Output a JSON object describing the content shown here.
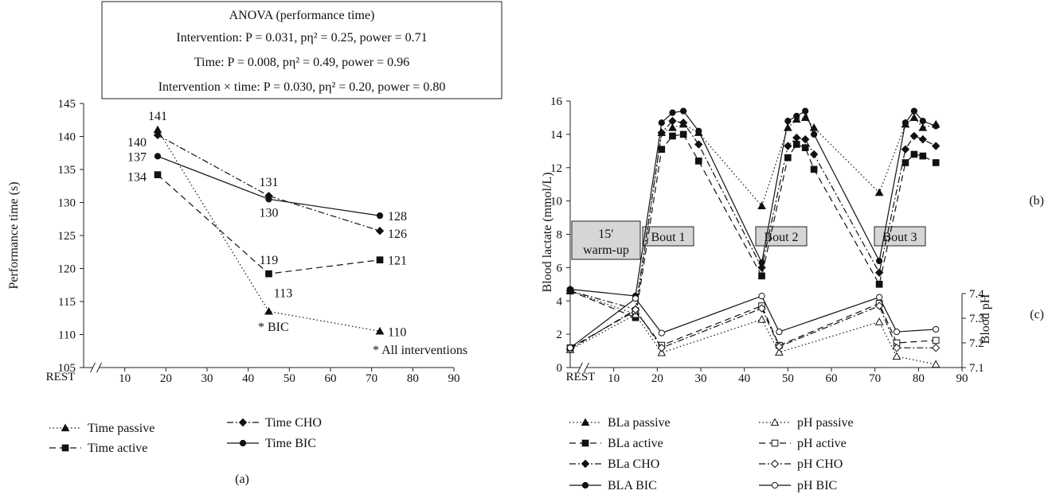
{
  "chart_data": [
    {
      "type": "line",
      "panel_label": "(a)",
      "ylabel": "Performance time (s)",
      "x_first_label": "REST",
      "x_ticks": [
        10,
        20,
        30,
        40,
        50,
        60,
        70,
        80,
        90
      ],
      "xlim": [
        0,
        90
      ],
      "y_ticks": [
        105,
        110,
        115,
        120,
        125,
        130,
        135,
        140,
        145
      ],
      "ylim": [
        105,
        145
      ],
      "grid": false,
      "anova_box": [
        "ANOVA (performance time)",
        "Intervention: P = 0.031, pη² = 0.25, power = 0.71",
        "Time: P = 0.008, pη² = 0.49, power = 0.96",
        "Intervention × time: P = 0.030, pη² = 0.20, power = 0.80"
      ],
      "annotations": [
        "* BIC",
        "* All interventions"
      ],
      "series": [
        {
          "name": "Time passive",
          "marker": "triangle",
          "dash": "dotted",
          "x": [
            18,
            45,
            72
          ],
          "y": [
            141,
            113.5,
            110.5
          ],
          "labels": [
            "141",
            "113",
            "110"
          ]
        },
        {
          "name": "Time active",
          "marker": "square",
          "dash": "dashed",
          "x": [
            18,
            45,
            72
          ],
          "y": [
            134.2,
            119.2,
            121.3
          ],
          "labels": [
            "134",
            "119",
            "121"
          ]
        },
        {
          "name": "Time CHO",
          "marker": "diamond",
          "dash": "dashdot",
          "x": [
            18,
            45,
            72
          ],
          "y": [
            140.2,
            131,
            125.7
          ],
          "labels": [
            "140",
            "131",
            "126"
          ]
        },
        {
          "name": "Time BIC",
          "marker": "circle",
          "dash": "solid",
          "x": [
            18,
            45,
            72
          ],
          "y": [
            137,
            130.5,
            128
          ],
          "labels": [
            "137",
            "130",
            "128"
          ]
        }
      ]
    },
    {
      "type": "line",
      "panel_labels": [
        "(b)",
        "(c)"
      ],
      "ylabel": "Blood lactate (mmol/L)",
      "y2label": "Blood pH",
      "x_first_label": "REST",
      "x_ticks": [
        10,
        20,
        30,
        40,
        50,
        60,
        70,
        80,
        90
      ],
      "xlim": [
        0,
        90
      ],
      "y_ticks": [
        0,
        2,
        4,
        6,
        8,
        10,
        12,
        14,
        16
      ],
      "ylim": [
        0,
        16
      ],
      "y2_ticks": [
        7.1,
        7.2,
        7.3,
        7.4
      ],
      "y2lim": [
        7.1,
        7.4
      ],
      "grid": false,
      "phase_boxes": [
        "15′ warm-up",
        "Bout 1",
        "Bout 2",
        "Bout 3"
      ],
      "series": [
        {
          "name": "BLa passive",
          "axis": "left",
          "marker": "triangle",
          "filled": true,
          "dash": "dotted",
          "x": [
            0,
            15,
            21,
            23.5,
            26,
            29.5,
            44,
            50,
            52,
            54,
            56,
            71,
            77,
            79,
            81,
            84
          ],
          "y": [
            4.6,
            3.2,
            14.1,
            14.4,
            14.6,
            14.1,
            9.7,
            14.4,
            14.9,
            15,
            14.4,
            10.5,
            14.6,
            15,
            14.4,
            14.6
          ]
        },
        {
          "name": "BLa active",
          "axis": "left",
          "marker": "square",
          "filled": true,
          "dash": "dashed",
          "x": [
            0,
            15,
            21,
            23.5,
            26,
            29.5,
            44,
            50,
            52,
            54,
            56,
            71,
            77,
            79,
            81,
            84
          ],
          "y": [
            4.6,
            3.0,
            13.1,
            13.9,
            14.0,
            12.4,
            5.5,
            12.6,
            13.4,
            13.2,
            11.9,
            5.0,
            12.3,
            12.8,
            12.7,
            12.3
          ]
        },
        {
          "name": "BLa CHO",
          "axis": "left",
          "marker": "diamond",
          "filled": true,
          "dash": "dashdot",
          "x": [
            0,
            15,
            21,
            23.5,
            26,
            29.5,
            44,
            50,
            52,
            54,
            56,
            71,
            77,
            79,
            81,
            84
          ],
          "y": [
            4.6,
            3.5,
            14.1,
            14.8,
            14.7,
            13.4,
            6.0,
            13.3,
            13.8,
            13.7,
            12.8,
            5.7,
            13.1,
            13.9,
            13.7,
            13.3
          ]
        },
        {
          "name": "BLA BIC",
          "axis": "left",
          "marker": "circle",
          "filled": true,
          "dash": "solid",
          "x": [
            0,
            15,
            21,
            23.5,
            26,
            29.5,
            44,
            50,
            52,
            54,
            56,
            71,
            77,
            79,
            81,
            84
          ],
          "y": [
            4.7,
            4.3,
            14.7,
            15.3,
            15.4,
            14.2,
            6.3,
            14.8,
            15.1,
            15.4,
            14.0,
            6.4,
            14.7,
            15.4,
            14.8,
            14.5
          ]
        },
        {
          "name": "pH passive",
          "axis": "right",
          "marker": "triangle",
          "filled": false,
          "dash": "dotted",
          "x": [
            0,
            15,
            21,
            44,
            48,
            71,
            75,
            84
          ],
          "y": [
            7.172,
            7.315,
            7.16,
            7.295,
            7.162,
            7.285,
            7.145,
            7.113
          ]
        },
        {
          "name": "pH active",
          "axis": "right",
          "marker": "square",
          "filled": false,
          "dash": "dashed",
          "x": [
            0,
            15,
            21,
            44,
            48,
            71,
            75,
            84
          ],
          "y": [
            7.18,
            7.33,
            7.19,
            7.35,
            7.19,
            7.36,
            7.2,
            7.21
          ]
        },
        {
          "name": "pH CHO",
          "axis": "right",
          "marker": "diamond",
          "filled": false,
          "dash": "dashdot",
          "x": [
            0,
            15,
            21,
            44,
            48,
            71,
            75,
            84
          ],
          "y": [
            7.175,
            7.335,
            7.18,
            7.34,
            7.185,
            7.35,
            7.18,
            7.18
          ]
        },
        {
          "name": "pH BIC",
          "axis": "right",
          "marker": "circle",
          "filled": false,
          "dash": "solid",
          "x": [
            0,
            15,
            21,
            44,
            48,
            71,
            75,
            84
          ],
          "y": [
            7.18,
            7.38,
            7.24,
            7.39,
            7.245,
            7.385,
            7.245,
            7.255
          ]
        }
      ]
    }
  ]
}
